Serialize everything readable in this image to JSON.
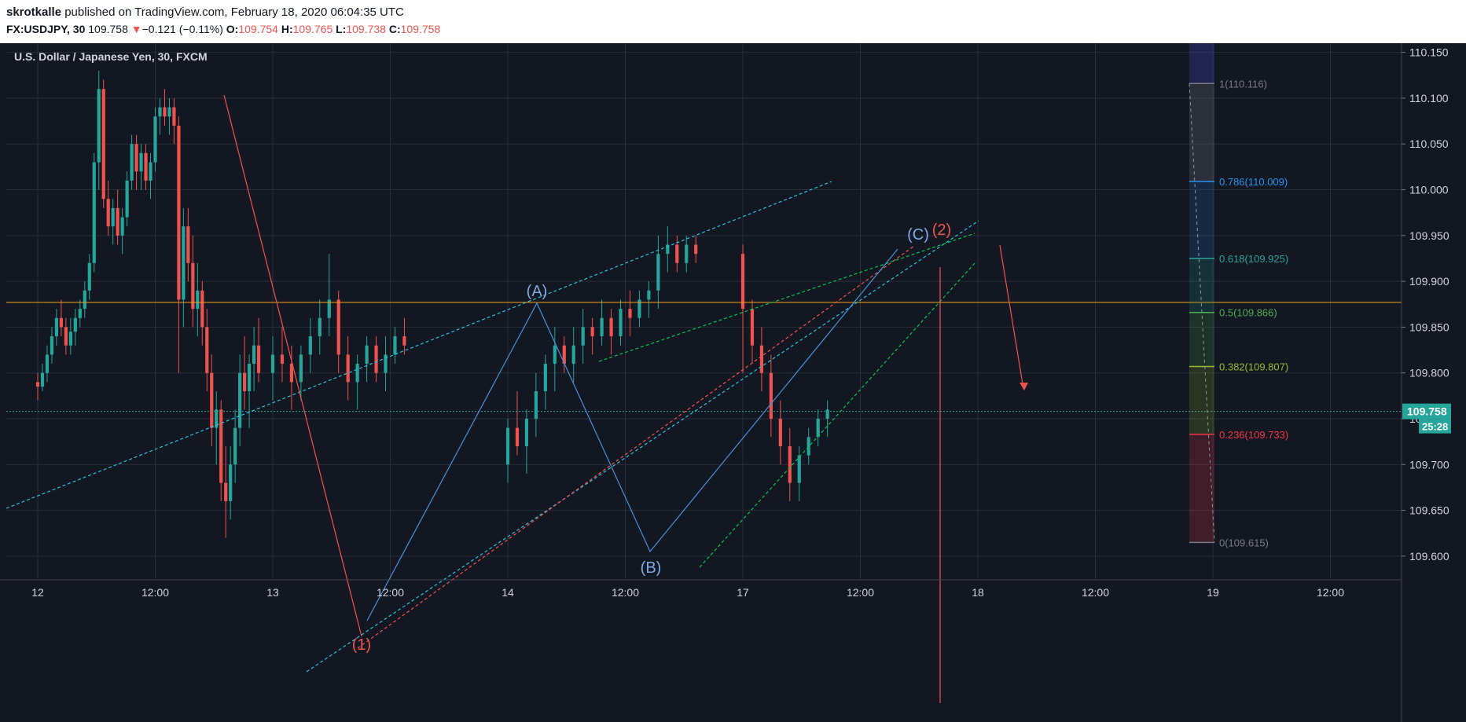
{
  "header": {
    "author": "skrotkalle",
    "published_text": "published on TradingView.com, February 18, 2020 06:04:35 UTC",
    "symbol": "FX:USDJPY, 30",
    "last": "109.758",
    "change_arrow": "▼",
    "change": "−0.121 (−0.11%)",
    "o_label": "O:",
    "o_value": "109.754",
    "h_label": "H:",
    "h_value": "109.765",
    "l_label": "L:",
    "l_value": "109.738",
    "c_label": "C:",
    "c_value": "109.758"
  },
  "chart_data": {
    "type": "candlestick",
    "title": "U.S. Dollar / Japanese Yen, 30, FXCM",
    "ylim": [
      109.575,
      110.16
    ],
    "y_ticks": [
      "110.150",
      "110.100",
      "110.050",
      "110.000",
      "109.950",
      "109.900",
      "109.850",
      "109.800",
      "109.750",
      "109.700",
      "109.650",
      "109.600"
    ],
    "x_ticks": [
      "12",
      "12:00",
      "13",
      "12:00",
      "14",
      "12:00",
      "17",
      "12:00",
      "18",
      "12:00",
      "19",
      "12:00"
    ],
    "last_price_label": "109.758",
    "countdown_label": "25:28",
    "horizontal_level": 109.877,
    "bars_per_day": 48,
    "candles_x_start_day": 0,
    "candles": [
      [
        0,
        109.79,
        109.8,
        109.77,
        109.785
      ],
      [
        0.02,
        109.785,
        109.81,
        109.78,
        109.8
      ],
      [
        0.04,
        109.8,
        109.83,
        109.79,
        109.82
      ],
      [
        0.06,
        109.82,
        109.85,
        109.81,
        109.84
      ],
      [
        0.08,
        109.84,
        109.87,
        109.83,
        109.86
      ],
      [
        0.1,
        109.86,
        109.88,
        109.84,
        109.85
      ],
      [
        0.12,
        109.85,
        109.86,
        109.82,
        109.83
      ],
      [
        0.14,
        109.83,
        109.86,
        109.82,
        109.845
      ],
      [
        0.16,
        109.845,
        109.87,
        109.83,
        109.86
      ],
      [
        0.18,
        109.86,
        109.88,
        109.85,
        109.87
      ],
      [
        0.2,
        109.87,
        109.9,
        109.86,
        109.89
      ],
      [
        0.22,
        109.89,
        109.93,
        109.88,
        109.92
      ],
      [
        0.24,
        109.92,
        110.04,
        109.91,
        110.03
      ],
      [
        0.26,
        110.03,
        110.13,
        110.0,
        110.11
      ],
      [
        0.28,
        110.11,
        110.12,
        109.98,
        109.99
      ],
      [
        0.3,
        109.99,
        110.01,
        109.95,
        109.96
      ],
      [
        0.32,
        109.96,
        109.99,
        109.94,
        109.98
      ],
      [
        0.34,
        109.98,
        110.0,
        109.94,
        109.95
      ],
      [
        0.36,
        109.95,
        109.98,
        109.93,
        109.97
      ],
      [
        0.38,
        109.97,
        110.02,
        109.96,
        110.01
      ],
      [
        0.4,
        110.01,
        110.06,
        110.0,
        110.05
      ],
      [
        0.42,
        110.05,
        110.06,
        110.0,
        110.02
      ],
      [
        0.44,
        110.02,
        110.05,
        110.0,
        110.04
      ],
      [
        0.46,
        110.04,
        110.05,
        110.0,
        110.01
      ],
      [
        0.48,
        110.01,
        110.04,
        109.99,
        110.03
      ],
      [
        0.5,
        110.03,
        110.09,
        110.02,
        110.08
      ],
      [
        0.52,
        110.08,
        110.1,
        110.06,
        110.09
      ],
      [
        0.54,
        110.09,
        110.11,
        110.07,
        110.08
      ],
      [
        0.56,
        110.08,
        110.1,
        110.06,
        110.09
      ],
      [
        0.58,
        110.09,
        110.1,
        110.05,
        110.07
      ],
      [
        0.6,
        110.07,
        110.08,
        109.8,
        109.88
      ],
      [
        0.62,
        109.88,
        109.98,
        109.85,
        109.96
      ],
      [
        0.64,
        109.96,
        109.98,
        109.9,
        109.92
      ],
      [
        0.66,
        109.92,
        109.95,
        109.85,
        109.87
      ],
      [
        0.68,
        109.87,
        109.92,
        109.84,
        109.89
      ],
      [
        0.7,
        109.89,
        109.9,
        109.83,
        109.85
      ],
      [
        0.72,
        109.85,
        109.87,
        109.78,
        109.8
      ],
      [
        0.74,
        109.8,
        109.82,
        109.72,
        109.74
      ],
      [
        0.76,
        109.74,
        109.78,
        109.7,
        109.76
      ],
      [
        0.78,
        109.76,
        109.77,
        109.66,
        109.68
      ],
      [
        0.8,
        109.68,
        109.72,
        109.62,
        109.66
      ],
      [
        0.82,
        109.66,
        109.72,
        109.64,
        109.7
      ],
      [
        0.84,
        109.7,
        109.76,
        109.68,
        109.74
      ],
      [
        0.86,
        109.74,
        109.82,
        109.72,
        109.8
      ],
      [
        0.88,
        109.8,
        109.84,
        109.76,
        109.78
      ],
      [
        0.9,
        109.78,
        109.82,
        109.74,
        109.81
      ],
      [
        0.92,
        109.81,
        109.85,
        109.78,
        109.83
      ],
      [
        0.94,
        109.83,
        109.86,
        109.79,
        109.8
      ],
      [
        1.0,
        109.8,
        109.84,
        109.77,
        109.82
      ],
      [
        1.04,
        109.82,
        109.85,
        109.79,
        109.81
      ],
      [
        1.08,
        109.81,
        109.83,
        109.76,
        109.79
      ],
      [
        1.12,
        109.79,
        109.83,
        109.77,
        109.82
      ],
      [
        1.16,
        109.82,
        109.86,
        109.8,
        109.84
      ],
      [
        1.2,
        109.84,
        109.88,
        109.82,
        109.86
      ],
      [
        1.24,
        109.86,
        109.93,
        109.84,
        109.88
      ],
      [
        1.28,
        109.88,
        109.89,
        109.8,
        109.82
      ],
      [
        1.32,
        109.82,
        109.84,
        109.77,
        109.79
      ],
      [
        1.36,
        109.79,
        109.82,
        109.76,
        109.81
      ],
      [
        1.4,
        109.81,
        109.84,
        109.79,
        109.83
      ],
      [
        1.44,
        109.83,
        109.84,
        109.79,
        109.8
      ],
      [
        1.48,
        109.8,
        109.84,
        109.78,
        109.82
      ],
      [
        1.52,
        109.82,
        109.85,
        109.81,
        109.84
      ],
      [
        1.56,
        109.84,
        109.86,
        109.82,
        109.83
      ],
      [
        2.0,
        109.7,
        109.75,
        109.68,
        109.74
      ],
      [
        2.04,
        109.74,
        109.78,
        109.71,
        109.72
      ],
      [
        2.08,
        109.72,
        109.76,
        109.69,
        109.75
      ],
      [
        2.12,
        109.75,
        109.8,
        109.73,
        109.78
      ],
      [
        2.16,
        109.78,
        109.82,
        109.76,
        109.81
      ],
      [
        2.2,
        109.81,
        109.85,
        109.78,
        109.83
      ],
      [
        2.24,
        109.83,
        109.84,
        109.8,
        109.81
      ],
      [
        2.28,
        109.81,
        109.85,
        109.79,
        109.83
      ],
      [
        2.32,
        109.83,
        109.87,
        109.81,
        109.85
      ],
      [
        2.36,
        109.85,
        109.86,
        109.82,
        109.84
      ],
      [
        2.4,
        109.84,
        109.88,
        109.83,
        109.86
      ],
      [
        2.44,
        109.86,
        109.87,
        109.82,
        109.84
      ],
      [
        2.48,
        109.84,
        109.88,
        109.83,
        109.87
      ],
      [
        2.52,
        109.87,
        109.89,
        109.84,
        109.86
      ],
      [
        2.56,
        109.86,
        109.89,
        109.85,
        109.88
      ],
      [
        2.6,
        109.88,
        109.9,
        109.86,
        109.89
      ],
      [
        2.64,
        109.89,
        109.95,
        109.87,
        109.93
      ],
      [
        2.68,
        109.93,
        109.96,
        109.91,
        109.94
      ],
      [
        2.72,
        109.94,
        109.95,
        109.91,
        109.92
      ],
      [
        2.76,
        109.92,
        109.95,
        109.91,
        109.94
      ],
      [
        2.8,
        109.94,
        109.95,
        109.92,
        109.93
      ],
      [
        3.0,
        109.93,
        109.94,
        109.8,
        109.87
      ],
      [
        3.04,
        109.87,
        109.88,
        109.81,
        109.83
      ],
      [
        3.08,
        109.83,
        109.85,
        109.78,
        109.8
      ],
      [
        3.12,
        109.8,
        109.82,
        109.73,
        109.75
      ],
      [
        3.16,
        109.75,
        109.77,
        109.7,
        109.72
      ],
      [
        3.2,
        109.72,
        109.74,
        109.66,
        109.68
      ],
      [
        3.24,
        109.68,
        109.72,
        109.66,
        109.71
      ],
      [
        3.28,
        109.71,
        109.74,
        109.7,
        109.73
      ],
      [
        3.32,
        109.73,
        109.76,
        109.72,
        109.75
      ],
      [
        3.36,
        109.75,
        109.77,
        109.73,
        109.76
      ]
    ],
    "annotations": {
      "wave_labels": [
        "(A)",
        "(B)",
        "(C)",
        "(1)",
        "(2)"
      ],
      "fib_levels": [
        {
          "label": "1(110.116)",
          "price": 110.116
        },
        {
          "label": "0.786(110.009)",
          "price": 110.009
        },
        {
          "label": "0.618(109.925)",
          "price": 109.925
        },
        {
          "label": "0.5(109.866)",
          "price": 109.866
        },
        {
          "label": "0.382(109.807)",
          "price": 109.807
        },
        {
          "label": "0.236(109.733)",
          "price": 109.733
        },
        {
          "label": "0(109.615)",
          "price": 109.615
        }
      ]
    }
  },
  "colors": {
    "background": "#131722",
    "up": "#26a69a",
    "down": "#ef5350",
    "grid": "#2a2e39",
    "axis_text": "#d1d4dc",
    "level_line": "#f7a21b",
    "price_badge": "#26a69a"
  }
}
